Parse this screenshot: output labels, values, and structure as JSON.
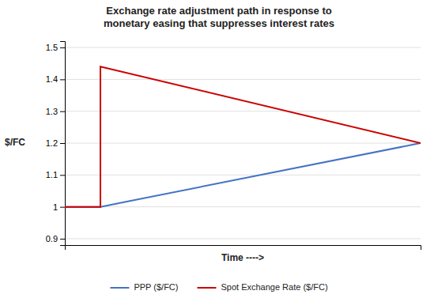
{
  "chart_data": {
    "type": "line",
    "title": "Exchange rate adjustment path in response to\nmonetary easing that suppresses interest rates",
    "xlabel": "Time ---->",
    "ylabel": "$/FC",
    "xlim": [
      0,
      10
    ],
    "ylim": [
      0.88,
      1.52
    ],
    "yticks": [
      0.9,
      1,
      1.1,
      1.2,
      1.3,
      1.4,
      1.5
    ],
    "grid": true,
    "legend": "bottom",
    "tick_labels": "y",
    "series": [
      {
        "name": "PPP ($/FC)",
        "color": "#4472C4",
        "x": [
          0,
          1,
          10
        ],
        "values": [
          1.0,
          1.0,
          1.2
        ]
      },
      {
        "name": "Spot Exchange Rate ($/FC)",
        "color": "#CC0000",
        "x": [
          0,
          1,
          1,
          10
        ],
        "values": [
          1.0,
          1.0,
          1.44,
          1.2
        ]
      }
    ]
  }
}
